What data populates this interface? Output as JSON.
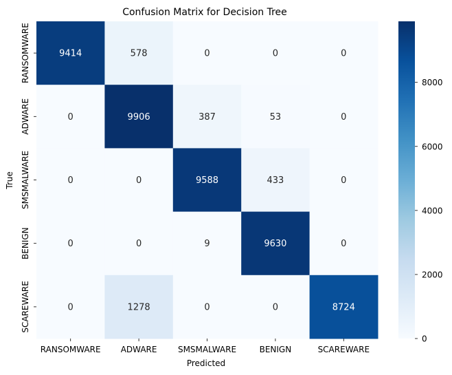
{
  "chart_data": {
    "type": "heatmap",
    "title": "Confusion Matrix for Decision Tree",
    "xlabel": "Predicted",
    "ylabel": "True",
    "x_categories": [
      "RANSOMWARE",
      "ADWARE",
      "SMSMALWARE",
      "BENIGN",
      "SCAREWARE"
    ],
    "y_categories": [
      "RANSOMWARE",
      "ADWARE",
      "SMSMALWARE",
      "BENIGN",
      "SCAREWARE"
    ],
    "values": [
      [
        9414,
        578,
        0,
        0,
        0
      ],
      [
        0,
        9906,
        387,
        53,
        0
      ],
      [
        0,
        0,
        9588,
        433,
        0
      ],
      [
        0,
        0,
        9,
        9630,
        0
      ],
      [
        0,
        1278,
        0,
        0,
        8724
      ]
    ],
    "colormap": "Blues",
    "color_range": [
      0,
      9906
    ],
    "colorbar_ticks": [
      0,
      2000,
      4000,
      6000,
      8000
    ],
    "colorbar_tick_labels": [
      "0",
      "2000",
      "4000",
      "6000",
      "8000"
    ],
    "grid": false
  }
}
